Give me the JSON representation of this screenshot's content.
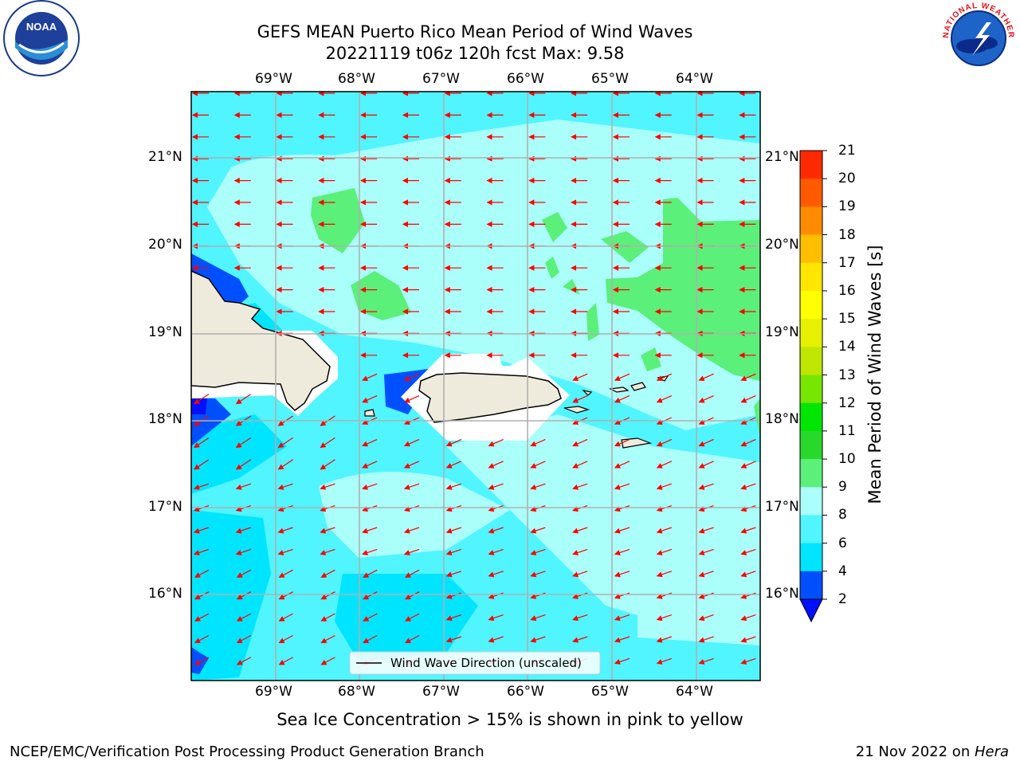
{
  "header": {
    "title_line1": "GEFS MEAN Puerto Rico Mean Period of Wind Waves",
    "title_line2": "20221119 t06z 120h fcst   Max: 9.58"
  },
  "logos": {
    "left": {
      "text": "NOAA",
      "ring_text": "NATIONAL OCEANIC AND ATMOSPHERIC ADMINISTRATION · U.S. DEPARTMENT OF COMMERCE"
    },
    "right": {
      "ring_text": "NATIONAL WEATHER SERVICE"
    }
  },
  "map": {
    "lon_labels": [
      "69°W",
      "68°W",
      "67°W",
      "66°W",
      "65°W",
      "64°W"
    ],
    "lat_labels": [
      "21°N",
      "20°N",
      "19°N",
      "18°N",
      "17°N",
      "16°N"
    ],
    "legend_label": "Wind Wave Direction (unscaled)"
  },
  "colorbar": {
    "label": "Mean Period of Wind Waves [s]",
    "ticks": [
      "2",
      "4",
      "6",
      "8",
      "9",
      "10",
      "11",
      "12",
      "13",
      "14",
      "15",
      "16",
      "17",
      "18",
      "19",
      "20",
      "21"
    ],
    "colors": [
      "#0050ff",
      "#00e5ff",
      "#50f5ff",
      "#aafffa",
      "#5af07a",
      "#28d82a",
      "#00e600",
      "#77e600",
      "#bfe600",
      "#e6f000",
      "#ffff00",
      "#ffe600",
      "#ffbf00",
      "#ff8c00",
      "#ff5a00",
      "#ff2a00",
      "#ff0000"
    ],
    "under_color": "#0010ff"
  },
  "caption": "Sea Ice Concentration > 15% is shown in pink to yellow",
  "footer": {
    "left": "NCEP/EMC/Verification Post Processing Product Generation Branch",
    "right_date": "21 Nov 2022 on ",
    "right_host": "Hera"
  }
}
